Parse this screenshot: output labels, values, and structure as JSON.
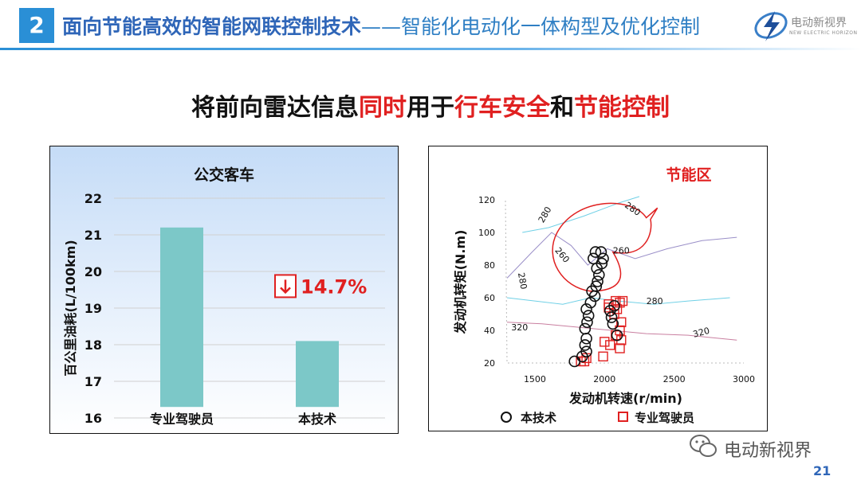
{
  "header": {
    "section_number": "2",
    "title": "面向节能高效的智能网联控制技术",
    "subtitle": "——智能化电动化一体构型及优化控制",
    "brand_cn": "电动新视界",
    "brand_en": "NEW ELECTRIC HORIZON"
  },
  "headline": {
    "part1": "将前向雷达信息",
    "part2": "同时",
    "part3": "用于",
    "part4": "行车安全",
    "part5": "和",
    "part6": "节能控制"
  },
  "footer": {
    "logo_text": "电动新视界",
    "page_number": "21"
  },
  "colors": {
    "accent": "#2a8fd6",
    "red": "#e02020",
    "bar": "#7cc8c8"
  },
  "chart_data": [
    {
      "type": "bar",
      "title": "公交客车",
      "ylabel": "百公里油耗(L/100km)",
      "categories": [
        "专业驾驶员",
        "本技术"
      ],
      "values": [
        21.2,
        18.1
      ],
      "ylim": [
        16,
        22
      ],
      "yticks": [
        "16",
        "17",
        "18",
        "19",
        "20",
        "21",
        "22"
      ],
      "annotation": "14.7%",
      "annotation_icon": "down-arrow-icon",
      "grid": true
    },
    {
      "type": "scatter",
      "title": "节能区",
      "xlabel": "发动机转速(r/min)",
      "ylabel": "发动机转矩(N.m)",
      "xlim": [
        1300,
        3000
      ],
      "ylim": [
        15,
        125
      ],
      "xticks": [
        "1500",
        "2000",
        "2500",
        "3000"
      ],
      "yticks": [
        "20",
        "40",
        "60",
        "80",
        "100",
        "120"
      ],
      "contour_labels": [
        "280",
        "280",
        "260",
        "260",
        "280",
        "280",
        "320",
        "320"
      ],
      "series": [
        {
          "name": "本技术",
          "marker": "circle",
          "points": [
            [
              1785,
              21
            ],
            [
              1840,
              24
            ],
            [
              1870,
              27
            ],
            [
              1860,
              31
            ],
            [
              1870,
              35
            ],
            [
              1860,
              41
            ],
            [
              1875,
              45
            ],
            [
              1885,
              49
            ],
            [
              1870,
              53
            ],
            [
              1900,
              57
            ],
            [
              1930,
              61
            ],
            [
              1910,
              64
            ],
            [
              1940,
              67
            ],
            [
              1950,
              70
            ],
            [
              1960,
              74
            ],
            [
              1945,
              78
            ],
            [
              1980,
              81
            ],
            [
              1920,
              84
            ],
            [
              1990,
              84
            ],
            [
              1935,
              88
            ],
            [
              1975,
              88
            ],
            [
              2050,
              48
            ],
            [
              2060,
              44
            ],
            [
              2040,
              52
            ],
            [
              2070,
              55
            ],
            [
              2090,
              37
            ]
          ]
        },
        {
          "name": "专业驾驶员",
          "marker": "square",
          "points": [
            [
              1830,
              21
            ],
            [
              1855,
              21
            ],
            [
              1870,
              23
            ],
            [
              1990,
              24
            ],
            [
              2000,
              33
            ],
            [
              2040,
              31
            ],
            [
              2110,
              29
            ],
            [
              2080,
              37
            ],
            [
              2120,
              34
            ],
            [
              2110,
              40
            ],
            [
              2120,
              45
            ],
            [
              2070,
              50
            ],
            [
              2090,
              53
            ],
            [
              2110,
              57
            ],
            [
              2030,
              56
            ],
            [
              2080,
              58
            ],
            [
              2130,
              58
            ],
            [
              2030,
              54
            ]
          ]
        }
      ]
    }
  ]
}
